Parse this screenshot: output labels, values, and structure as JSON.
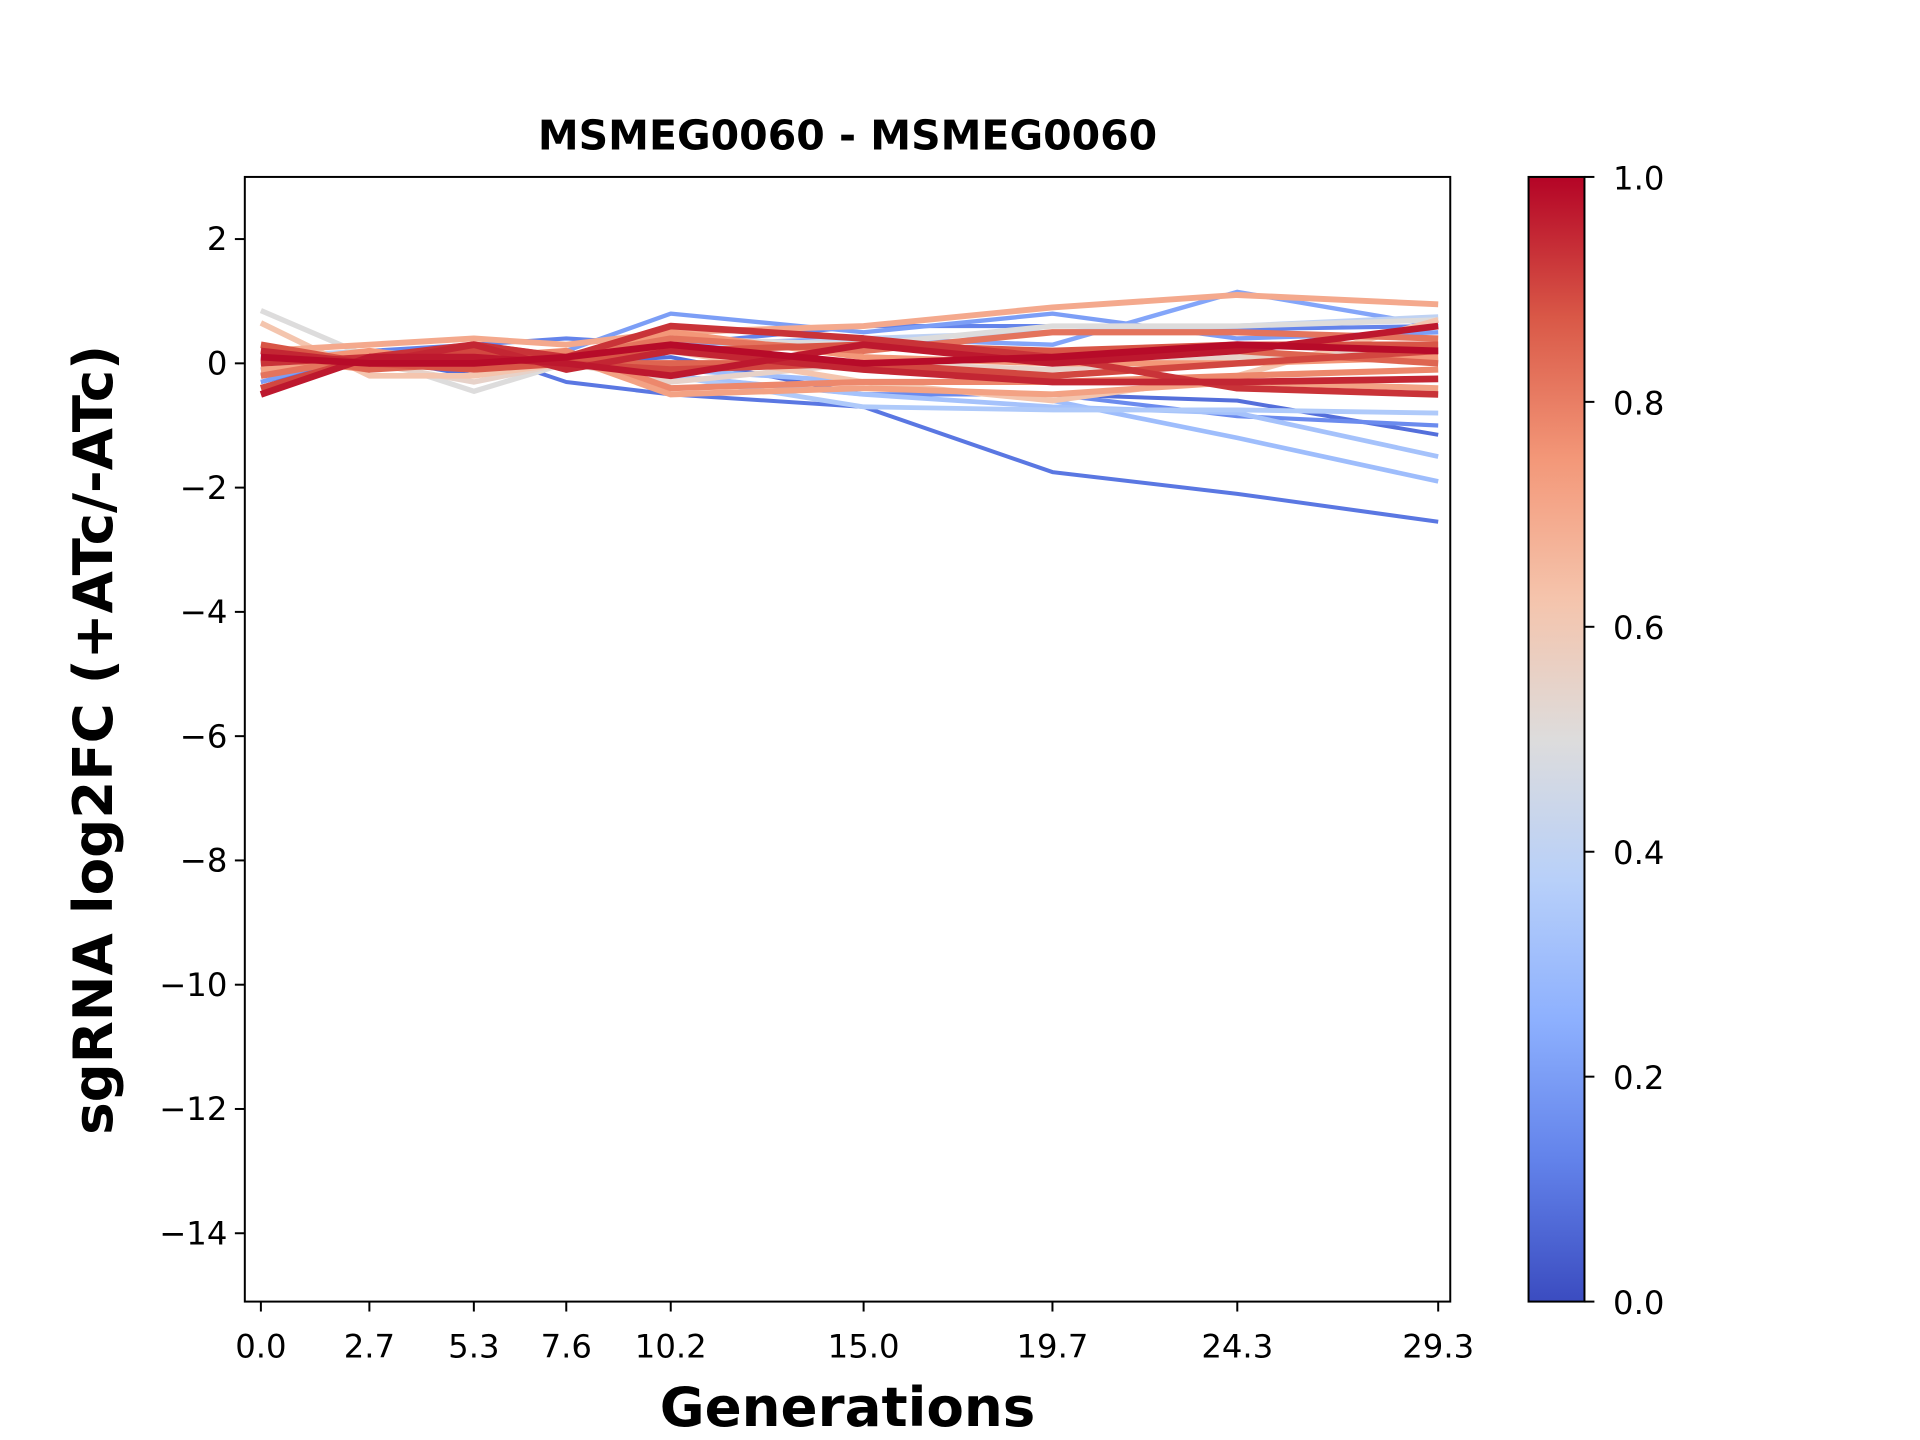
{
  "chart_data": {
    "type": "line",
    "title": "MSMEG0060 - MSMEG0060",
    "xlabel": "Generations",
    "ylabel": "sgRNA log2FC (+ATc/-ATc)",
    "x": [
      0.0,
      2.7,
      5.3,
      7.6,
      10.2,
      15.0,
      19.7,
      24.3,
      29.3
    ],
    "x_tick_labels": [
      "0.0",
      "2.7",
      "5.3",
      "7.6",
      "10.2",
      "15.0",
      "19.7",
      "24.3",
      "29.3"
    ],
    "ylim": [
      -15.1,
      3
    ],
    "y_ticks": [
      2,
      0,
      -2,
      -4,
      -6,
      -8,
      -10,
      -12,
      -14
    ],
    "y_tick_labels": [
      "2",
      "0",
      "−2",
      "−4",
      "−6",
      "−8",
      "−10",
      "−12",
      "−14"
    ],
    "grid": false,
    "colormap": "coolwarm",
    "colorbar": {
      "range": [
        0.0,
        1.0
      ],
      "tick_labels": [
        "0.0",
        "0.2",
        "0.4",
        "0.6",
        "0.8",
        "1.0"
      ],
      "low_color": "#3b4cc0",
      "mid_color": "#dddddd",
      "high_color": "#b40426"
    },
    "series": [
      {
        "color_value": 0.1,
        "values": [
          -0.3,
          0.1,
          0.2,
          -0.3,
          -0.5,
          -0.7,
          -1.75,
          -2.1,
          -2.55
        ]
      },
      {
        "color_value": 0.13,
        "values": [
          -0.2,
          0.2,
          0.3,
          0.4,
          0.3,
          0.6,
          0.6,
          0.55,
          0.6
        ]
      },
      {
        "color_value": 0.08,
        "values": [
          -0.1,
          0.1,
          -0.2,
          0.0,
          0.1,
          -0.5,
          -0.5,
          -0.6,
          -1.15
        ]
      },
      {
        "color_value": 0.15,
        "values": [
          0.0,
          0.0,
          0.1,
          0.0,
          -0.2,
          -0.5,
          -0.5,
          -0.85,
          -1.0
        ]
      },
      {
        "color_value": 0.2,
        "values": [
          -0.3,
          0.2,
          0.1,
          0.2,
          0.8,
          0.5,
          0.8,
          0.4,
          0.5
        ]
      },
      {
        "color_value": 0.22,
        "values": [
          0.1,
          0.0,
          0.2,
          0.1,
          0.3,
          0.4,
          0.3,
          1.15,
          0.6
        ]
      },
      {
        "color_value": 0.3,
        "values": [
          0.0,
          0.1,
          0.0,
          0.0,
          -0.1,
          -0.3,
          -0.6,
          -1.2,
          -1.9
        ]
      },
      {
        "color_value": 0.32,
        "values": [
          0.1,
          0.0,
          0.1,
          0.0,
          -0.2,
          -0.5,
          -0.7,
          -0.8,
          -1.5
        ]
      },
      {
        "color_value": 0.35,
        "values": [
          0.0,
          0.1,
          -0.1,
          0.0,
          -0.2,
          -0.7,
          -0.75,
          -0.75,
          -0.8
        ]
      },
      {
        "color_value": 0.4,
        "values": [
          0.1,
          0.2,
          0.0,
          0.1,
          0.2,
          0.4,
          0.5,
          0.6,
          0.75
        ]
      },
      {
        "color_value": 0.5,
        "values": [
          0.85,
          0.1,
          -0.45,
          0.0,
          0.4,
          0.3,
          0.6,
          0.6,
          0.7
        ]
      },
      {
        "color_value": 0.55,
        "values": [
          0.0,
          0.0,
          -0.3,
          0.0,
          -0.3,
          0.0,
          -0.1,
          0.1,
          0.2
        ]
      },
      {
        "color_value": 0.62,
        "values": [
          0.65,
          -0.2,
          -0.2,
          0.0,
          0.2,
          -0.3,
          -0.6,
          -0.2,
          0.7
        ]
      },
      {
        "color_value": 0.7,
        "values": [
          0.2,
          0.3,
          0.4,
          0.3,
          0.5,
          0.6,
          0.9,
          1.1,
          0.95
        ]
      },
      {
        "color_value": 0.72,
        "values": [
          -0.1,
          0.0,
          0.2,
          0.1,
          -0.5,
          -0.4,
          -0.5,
          -0.3,
          -0.4
        ]
      },
      {
        "color_value": 0.75,
        "values": [
          0.0,
          0.2,
          0.0,
          0.0,
          0.5,
          0.1,
          0.0,
          0.0,
          0.1
        ]
      },
      {
        "color_value": 0.78,
        "values": [
          0.1,
          -0.1,
          0.1,
          0.2,
          -0.4,
          -0.3,
          -0.3,
          -0.2,
          -0.1
        ]
      },
      {
        "color_value": 0.82,
        "values": [
          -0.2,
          0.1,
          0.3,
          0.1,
          0.4,
          0.2,
          0.5,
          0.5,
          0.4
        ]
      },
      {
        "color_value": 0.85,
        "values": [
          0.2,
          -0.1,
          0.0,
          0.0,
          0.0,
          0.0,
          0.1,
          0.2,
          0.0
        ]
      },
      {
        "color_value": 0.88,
        "values": [
          0.3,
          0.0,
          -0.1,
          0.0,
          0.2,
          0.3,
          0.2,
          0.3,
          0.3
        ]
      },
      {
        "color_value": 0.9,
        "values": [
          -0.4,
          0.1,
          0.2,
          0.0,
          -0.1,
          0.0,
          -0.2,
          0.0,
          0.2
        ]
      },
      {
        "color_value": 0.93,
        "values": [
          0.0,
          0.1,
          0.3,
          0.1,
          0.6,
          0.4,
          0.1,
          -0.4,
          -0.5
        ]
      },
      {
        "color_value": 0.95,
        "values": [
          0.2,
          0.0,
          0.3,
          -0.1,
          0.2,
          -0.1,
          -0.3,
          -0.3,
          -0.25
        ]
      },
      {
        "color_value": 0.97,
        "values": [
          -0.5,
          0.1,
          0.1,
          0.0,
          -0.2,
          0.3,
          0.0,
          0.2,
          0.6
        ]
      },
      {
        "color_value": 0.99,
        "values": [
          0.1,
          0.0,
          0.0,
          0.1,
          0.3,
          0.0,
          0.1,
          0.3,
          0.2
        ]
      }
    ]
  }
}
